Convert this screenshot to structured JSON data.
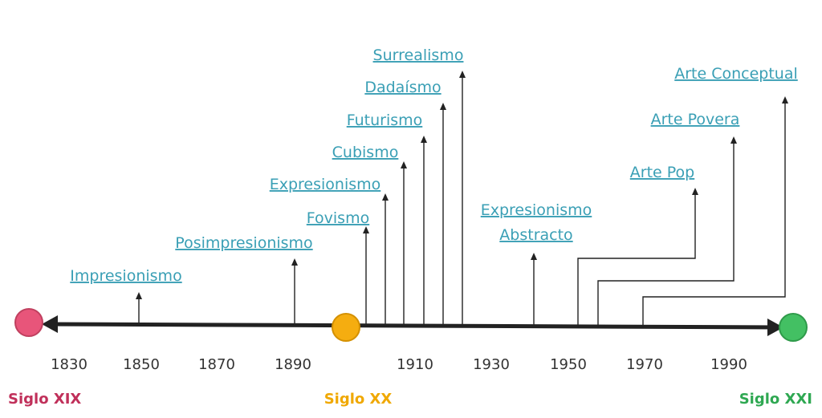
{
  "colors": {
    "movement_text": "#3a9fb5",
    "line": "#222222",
    "siglo_xix": "#e04a6e",
    "siglo_xx": "#f0a800",
    "siglo_xxi": "#3cb85a"
  },
  "centuries": [
    {
      "label": "Siglo XIX",
      "color": "#e04a6e"
    },
    {
      "label": "Siglo XX",
      "color": "#f0a800"
    },
    {
      "label": "Siglo XXI",
      "color": "#3cb85a"
    }
  ],
  "years": [
    "1830",
    "1850",
    "1870",
    "1890",
    "1910",
    "1930",
    "1950",
    "1970",
    "1990"
  ],
  "movements": [
    {
      "label": "Impresionismo",
      "year": 1850
    },
    {
      "label": "Posimpresionismo",
      "year": 1890
    },
    {
      "label": "Fovismo",
      "year": 1905
    },
    {
      "label": "Expresionismo",
      "year": 1905
    },
    {
      "label": "Cubismo",
      "year": 1907
    },
    {
      "label": "Futurismo",
      "year": 1909
    },
    {
      "label": "Dadaísmo",
      "year": 1916
    },
    {
      "label": "Surrealismo",
      "year": 1924
    },
    {
      "label": "Expresionismo Abstracto",
      "lines": [
        "Expresionismo",
        "Abstracto"
      ],
      "year": 1940
    },
    {
      "label": "Arte Pop",
      "year": 1950
    },
    {
      "label": "Arte Povera",
      "year": 1960
    },
    {
      "label": "Arte Conceptual",
      "year": 1970
    }
  ]
}
